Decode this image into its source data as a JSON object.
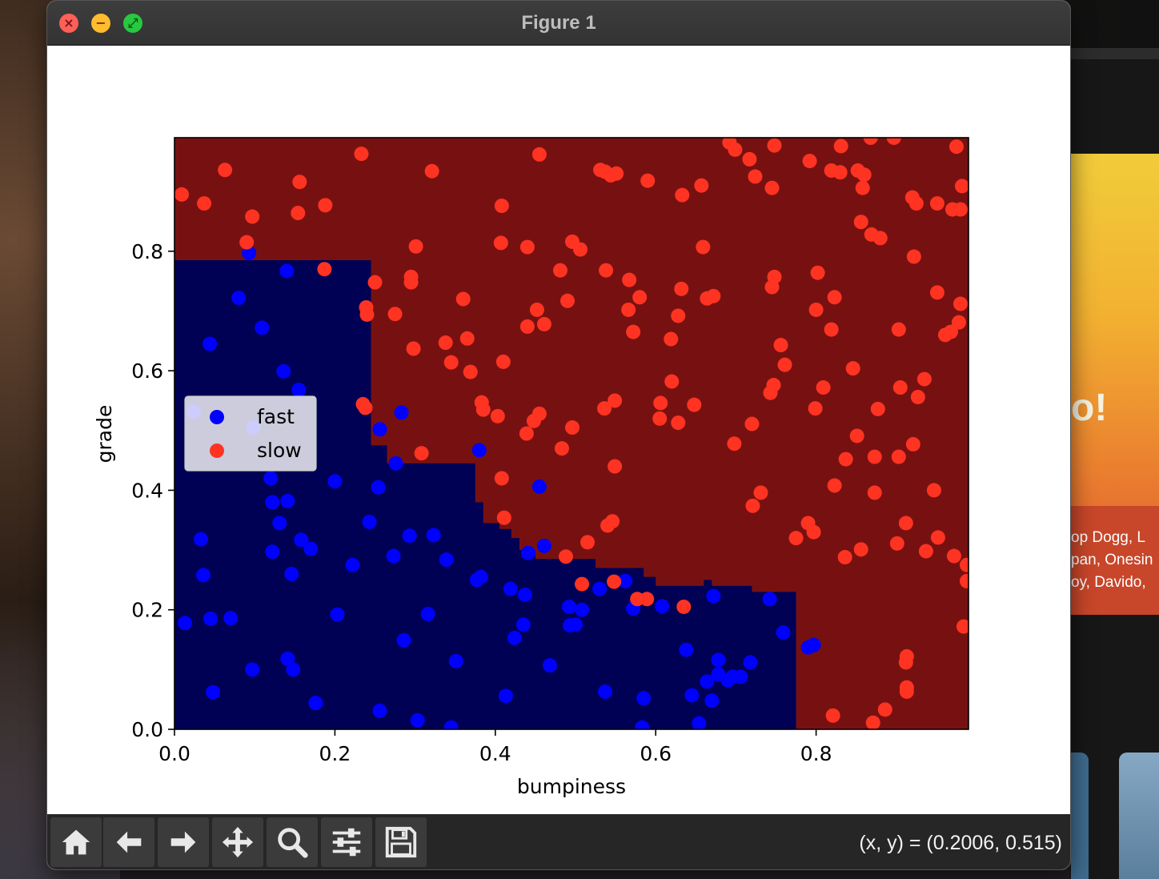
{
  "window": {
    "title": "Figure 1"
  },
  "background": {
    "promo_title": "o!",
    "promo_artists": "op Dogg, L\npan, Onesin\noy, Davido,"
  },
  "toolbar": {
    "buttons": [
      {
        "name": "home-button",
        "icon": "home-icon"
      },
      {
        "name": "back-button",
        "icon": "arrow-left-icon"
      },
      {
        "name": "forward-button",
        "icon": "arrow-right-icon"
      },
      {
        "name": "pan-button",
        "icon": "move-icon"
      },
      {
        "name": "zoom-button",
        "icon": "magnifier-icon"
      },
      {
        "name": "configure-subplots-button",
        "icon": "sliders-icon"
      },
      {
        "name": "save-button",
        "icon": "floppy-disk-icon"
      }
    ],
    "coordinates": "(x, y) = (0.2006, 0.515)"
  },
  "chart_data": {
    "type": "scatter",
    "xlabel": "bumpiness",
    "ylabel": "grade",
    "xlim": [
      0.0,
      0.99
    ],
    "ylim": [
      0.0,
      0.99
    ],
    "xticks": [
      "0.0",
      "0.2",
      "0.4",
      "0.6",
      "0.8"
    ],
    "yticks": [
      "0.0",
      "0.2",
      "0.4",
      "0.6",
      "0.8"
    ],
    "grid": false,
    "legend_position": "center-left",
    "background_colors": {
      "fast": "#000055",
      "slow": "#771111"
    },
    "decision_regions": {
      "fast_boundary_steps": [
        [
          0.0,
          0.785
        ],
        [
          0.245,
          0.785
        ],
        [
          0.245,
          0.475
        ],
        [
          0.265,
          0.475
        ],
        [
          0.265,
          0.445
        ],
        [
          0.375,
          0.445
        ],
        [
          0.375,
          0.38
        ],
        [
          0.385,
          0.38
        ],
        [
          0.385,
          0.345
        ],
        [
          0.405,
          0.345
        ],
        [
          0.405,
          0.335
        ],
        [
          0.42,
          0.335
        ],
        [
          0.42,
          0.32
        ],
        [
          0.43,
          0.32
        ],
        [
          0.43,
          0.3
        ],
        [
          0.45,
          0.3
        ],
        [
          0.45,
          0.285
        ],
        [
          0.525,
          0.285
        ],
        [
          0.525,
          0.27
        ],
        [
          0.585,
          0.27
        ],
        [
          0.585,
          0.255
        ],
        [
          0.6,
          0.255
        ],
        [
          0.6,
          0.24
        ],
        [
          0.66,
          0.24
        ],
        [
          0.66,
          0.25
        ],
        [
          0.67,
          0.25
        ],
        [
          0.67,
          0.24
        ],
        [
          0.72,
          0.24
        ],
        [
          0.72,
          0.23
        ],
        [
          0.775,
          0.23
        ],
        [
          0.775,
          0.0
        ]
      ]
    },
    "series": [
      {
        "name": "fast",
        "color": "#0000ff",
        "points": [
          [
            0.093,
            0.797
          ],
          [
            0.14,
            0.767
          ],
          [
            0.08,
            0.722
          ],
          [
            0.109,
            0.672
          ],
          [
            0.044,
            0.645
          ],
          [
            0.136,
            0.599
          ],
          [
            0.155,
            0.568
          ],
          [
            0.024,
            0.532
          ],
          [
            0.098,
            0.505
          ],
          [
            0.256,
            0.502
          ],
          [
            0.283,
            0.53
          ],
          [
            0.38,
            0.467
          ],
          [
            0.276,
            0.445
          ],
          [
            0.12,
            0.42
          ],
          [
            0.2,
            0.415
          ],
          [
            0.254,
            0.405
          ],
          [
            0.455,
            0.406
          ],
          [
            0.122,
            0.38
          ],
          [
            0.141,
            0.382
          ],
          [
            0.131,
            0.345
          ],
          [
            0.243,
            0.347
          ],
          [
            0.158,
            0.317
          ],
          [
            0.17,
            0.302
          ],
          [
            0.122,
            0.297
          ],
          [
            0.033,
            0.318
          ],
          [
            0.293,
            0.324
          ],
          [
            0.323,
            0.325
          ],
          [
            0.273,
            0.29
          ],
          [
            0.339,
            0.284
          ],
          [
            0.222,
            0.275
          ],
          [
            0.461,
            0.307
          ],
          [
            0.441,
            0.295
          ],
          [
            0.036,
            0.258
          ],
          [
            0.146,
            0.26
          ],
          [
            0.377,
            0.25
          ],
          [
            0.382,
            0.255
          ],
          [
            0.419,
            0.235
          ],
          [
            0.437,
            0.225
          ],
          [
            0.53,
            0.235
          ],
          [
            0.562,
            0.248
          ],
          [
            0.492,
            0.205
          ],
          [
            0.508,
            0.2
          ],
          [
            0.572,
            0.202
          ],
          [
            0.608,
            0.206
          ],
          [
            0.672,
            0.223
          ],
          [
            0.742,
            0.218
          ],
          [
            0.013,
            0.178
          ],
          [
            0.045,
            0.185
          ],
          [
            0.07,
            0.186
          ],
          [
            0.203,
            0.192
          ],
          [
            0.316,
            0.193
          ],
          [
            0.435,
            0.175
          ],
          [
            0.493,
            0.174
          ],
          [
            0.5,
            0.175
          ],
          [
            0.286,
            0.149
          ],
          [
            0.424,
            0.153
          ],
          [
            0.759,
            0.162
          ],
          [
            0.79,
            0.137
          ],
          [
            0.797,
            0.141
          ],
          [
            0.638,
            0.133
          ],
          [
            0.141,
            0.118
          ],
          [
            0.148,
            0.1
          ],
          [
            0.097,
            0.1
          ],
          [
            0.351,
            0.114
          ],
          [
            0.468,
            0.107
          ],
          [
            0.678,
            0.116
          ],
          [
            0.718,
            0.112
          ],
          [
            0.678,
            0.092
          ],
          [
            0.69,
            0.082
          ],
          [
            0.696,
            0.088
          ],
          [
            0.706,
            0.088
          ],
          [
            0.664,
            0.08
          ],
          [
            0.048,
            0.062
          ],
          [
            0.176,
            0.044
          ],
          [
            0.413,
            0.056
          ],
          [
            0.537,
            0.063
          ],
          [
            0.585,
            0.052
          ],
          [
            0.645,
            0.057
          ],
          [
            0.67,
            0.048
          ],
          [
            0.256,
            0.031
          ],
          [
            0.303,
            0.015
          ],
          [
            0.345,
            0.003
          ],
          [
            0.583,
            0.003
          ],
          [
            0.654,
            0.01
          ]
        ]
      },
      {
        "name": "slow",
        "color": "#ff3322",
        "points": [
          [
            0.009,
            0.895
          ],
          [
            0.037,
            0.88
          ],
          [
            0.063,
            0.936
          ],
          [
            0.097,
            0.858
          ],
          [
            0.09,
            0.815
          ],
          [
            0.154,
            0.864
          ],
          [
            0.156,
            0.916
          ],
          [
            0.188,
            0.877
          ],
          [
            0.233,
            0.963
          ],
          [
            0.187,
            0.77
          ],
          [
            0.25,
            0.748
          ],
          [
            0.239,
            0.706
          ],
          [
            0.24,
            0.694
          ],
          [
            0.275,
            0.695
          ],
          [
            0.295,
            0.757
          ],
          [
            0.295,
            0.748
          ],
          [
            0.301,
            0.808
          ],
          [
            0.321,
            0.934
          ],
          [
            0.298,
            0.637
          ],
          [
            0.338,
            0.647
          ],
          [
            0.345,
            0.614
          ],
          [
            0.36,
            0.72
          ],
          [
            0.365,
            0.654
          ],
          [
            0.369,
            0.598
          ],
          [
            0.383,
            0.547
          ],
          [
            0.385,
            0.535
          ],
          [
            0.403,
            0.524
          ],
          [
            0.41,
            0.615
          ],
          [
            0.407,
            0.814
          ],
          [
            0.408,
            0.876
          ],
          [
            0.44,
            0.807
          ],
          [
            0.455,
            0.962
          ],
          [
            0.44,
            0.674
          ],
          [
            0.452,
            0.702
          ],
          [
            0.461,
            0.678
          ],
          [
            0.481,
            0.768
          ],
          [
            0.49,
            0.717
          ],
          [
            0.496,
            0.816
          ],
          [
            0.506,
            0.803
          ],
          [
            0.531,
            0.936
          ],
          [
            0.537,
            0.933
          ],
          [
            0.544,
            0.927
          ],
          [
            0.551,
            0.93
          ],
          [
            0.59,
            0.918
          ],
          [
            0.538,
            0.768
          ],
          [
            0.567,
            0.752
          ],
          [
            0.58,
            0.723
          ],
          [
            0.566,
            0.702
          ],
          [
            0.572,
            0.665
          ],
          [
            0.632,
            0.737
          ],
          [
            0.628,
            0.692
          ],
          [
            0.619,
            0.653
          ],
          [
            0.633,
            0.894
          ],
          [
            0.657,
            0.91
          ],
          [
            0.659,
            0.807
          ],
          [
            0.664,
            0.721
          ],
          [
            0.672,
            0.725
          ],
          [
            0.692,
            0.982
          ],
          [
            0.699,
            0.97
          ],
          [
            0.717,
            0.954
          ],
          [
            0.724,
            0.925
          ],
          [
            0.745,
            0.906
          ],
          [
            0.748,
            0.977
          ],
          [
            0.792,
            0.951
          ],
          [
            0.819,
            0.935
          ],
          [
            0.83,
            0.932
          ],
          [
            0.831,
            0.976
          ],
          [
            0.852,
            0.935
          ],
          [
            0.86,
            0.928
          ],
          [
            0.858,
            0.906
          ],
          [
            0.868,
            0.99
          ],
          [
            0.897,
            0.99
          ],
          [
            0.856,
            0.849
          ],
          [
            0.869,
            0.828
          ],
          [
            0.88,
            0.822
          ],
          [
            0.92,
            0.89
          ],
          [
            0.925,
            0.88
          ],
          [
            0.951,
            0.88
          ],
          [
            0.97,
            0.87
          ],
          [
            0.975,
            0.975
          ],
          [
            0.982,
            0.909
          ],
          [
            0.98,
            0.87
          ],
          [
            0.922,
            0.791
          ],
          [
            0.802,
            0.764
          ],
          [
            0.823,
            0.723
          ],
          [
            0.8,
            0.702
          ],
          [
            0.819,
            0.669
          ],
          [
            0.903,
            0.669
          ],
          [
            0.951,
            0.731
          ],
          [
            0.98,
            0.712
          ],
          [
            0.978,
            0.681
          ],
          [
            0.961,
            0.66
          ],
          [
            0.968,
            0.665
          ],
          [
            0.745,
            0.74
          ],
          [
            0.748,
            0.757
          ],
          [
            0.756,
            0.643
          ],
          [
            0.761,
            0.61
          ],
          [
            0.743,
            0.563
          ],
          [
            0.747,
            0.576
          ],
          [
            0.799,
            0.537
          ],
          [
            0.809,
            0.572
          ],
          [
            0.846,
            0.604
          ],
          [
            0.851,
            0.491
          ],
          [
            0.877,
            0.536
          ],
          [
            0.905,
            0.572
          ],
          [
            0.927,
            0.556
          ],
          [
            0.935,
            0.586
          ],
          [
            0.921,
            0.477
          ],
          [
            0.903,
            0.456
          ],
          [
            0.873,
            0.456
          ],
          [
            0.837,
            0.452
          ],
          [
            0.823,
            0.408
          ],
          [
            0.873,
            0.396
          ],
          [
            0.947,
            0.4
          ],
          [
            0.698,
            0.478
          ],
          [
            0.72,
            0.511
          ],
          [
            0.606,
            0.546
          ],
          [
            0.605,
            0.52
          ],
          [
            0.62,
            0.582
          ],
          [
            0.628,
            0.513
          ],
          [
            0.648,
            0.543
          ],
          [
            0.536,
            0.537
          ],
          [
            0.549,
            0.55
          ],
          [
            0.549,
            0.44
          ],
          [
            0.496,
            0.505
          ],
          [
            0.483,
            0.47
          ],
          [
            0.455,
            0.528
          ],
          [
            0.448,
            0.516
          ],
          [
            0.439,
            0.495
          ],
          [
            0.408,
            0.42
          ],
          [
            0.411,
            0.354
          ],
          [
            0.515,
            0.313
          ],
          [
            0.54,
            0.341
          ],
          [
            0.546,
            0.348
          ],
          [
            0.488,
            0.289
          ],
          [
            0.508,
            0.243
          ],
          [
            0.548,
            0.247
          ],
          [
            0.577,
            0.218
          ],
          [
            0.589,
            0.218
          ],
          [
            0.635,
            0.205
          ],
          [
            0.721,
            0.374
          ],
          [
            0.731,
            0.396
          ],
          [
            0.775,
            0.32
          ],
          [
            0.79,
            0.345
          ],
          [
            0.797,
            0.33
          ],
          [
            0.836,
            0.288
          ],
          [
            0.856,
            0.301
          ],
          [
            0.901,
            0.311
          ],
          [
            0.912,
            0.345
          ],
          [
            0.937,
            0.298
          ],
          [
            0.952,
            0.321
          ],
          [
            0.972,
            0.29
          ],
          [
            0.988,
            0.275
          ],
          [
            0.988,
            0.248
          ],
          [
            0.984,
            0.172
          ],
          [
            0.912,
            0.112
          ],
          [
            0.913,
            0.122
          ],
          [
            0.913,
            0.063
          ],
          [
            0.913,
            0.07
          ],
          [
            0.886,
            0.033
          ],
          [
            0.821,
            0.023
          ],
          [
            0.871,
            0.011
          ],
          [
            0.235,
            0.544
          ],
          [
            0.238,
            0.538
          ],
          [
            0.308,
            0.462
          ]
        ]
      }
    ]
  }
}
